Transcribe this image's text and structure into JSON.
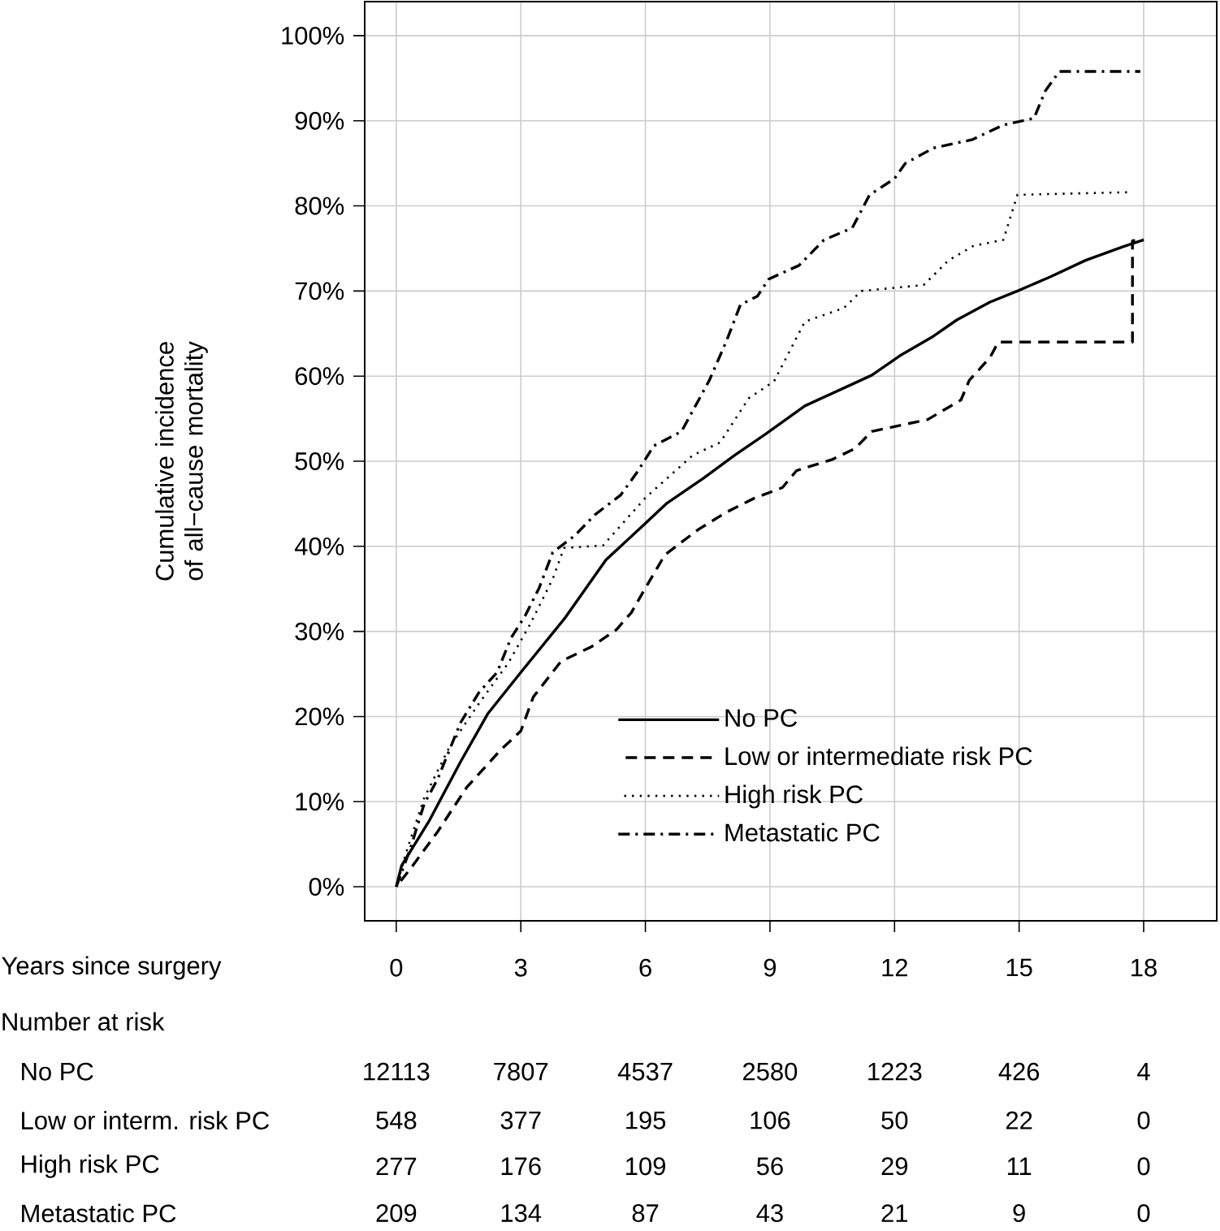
{
  "chart_data": {
    "type": "line",
    "xlabel": "Years since surgery",
    "ylabel": "Cumulative incidence of all−cause mortality",
    "xlim": [
      -0.76,
      19.76
    ],
    "ylim": [
      -4,
      104
    ],
    "xticks": [
      0,
      3,
      6,
      9,
      12,
      15,
      18
    ],
    "yticks": [
      {
        "value": 0,
        "label": "0%"
      },
      {
        "value": 10,
        "label": "10%"
      },
      {
        "value": 20,
        "label": "20%"
      },
      {
        "value": 30,
        "label": "30%"
      },
      {
        "value": 40,
        "label": "40%"
      },
      {
        "value": 50,
        "label": "50%"
      },
      {
        "value": 60,
        "label": "60%"
      },
      {
        "value": 70,
        "label": "70%"
      },
      {
        "value": 80,
        "label": "80%"
      },
      {
        "value": 90,
        "label": "90%"
      },
      {
        "value": 100,
        "label": "100%"
      }
    ],
    "grid": true,
    "legend": "bottom right",
    "series": [
      {
        "name": "No PC",
        "color": "#000000",
        "line_style": "solid",
        "x": [
          0,
          0.13,
          0.8,
          1.55,
          2.2,
          3,
          4.05,
          5.05,
          6,
          6.5,
          7.4,
          8.15,
          8.9,
          9.84,
          11.45,
          12.13,
          12.94,
          13.5,
          14.3,
          14.96,
          15.77,
          16.6,
          17.5,
          18
        ],
        "values": [
          0,
          2.5,
          7.8,
          14.7,
          20.3,
          25.2,
          31.5,
          38.4,
          42.7,
          45,
          48,
          50.7,
          53.2,
          56.5,
          60.1,
          62.4,
          64.7,
          66.6,
          68.7,
          70,
          71.7,
          73.6,
          75.2,
          76
        ]
      },
      {
        "name": "Low or intermediate risk PC",
        "color": "#000000",
        "line_style": "dashed",
        "x": [
          0,
          0.4,
          1.0,
          1.7,
          2.5,
          3,
          3.3,
          3.97,
          4.7,
          5.3,
          5.66,
          6,
          6.47,
          7.28,
          7.95,
          8.6,
          9.3,
          9.64,
          10.5,
          11.05,
          11.45,
          12.8,
          13.6,
          13.8,
          14.3,
          14.5,
          17.73,
          17.73,
          18
        ],
        "values": [
          0,
          2.5,
          6.5,
          11.7,
          16,
          18.3,
          22.3,
          26.5,
          28.2,
          30.2,
          32.2,
          35.1,
          39,
          42,
          44,
          45.6,
          46.9,
          48.9,
          50.2,
          51.5,
          53.5,
          54.9,
          57.2,
          59.5,
          62.2,
          64,
          64,
          75.9,
          76
        ]
      },
      {
        "name": "High risk PC",
        "color": "#000000",
        "line_style": "dotted",
        "x": [
          0,
          0.27,
          0.67,
          1.28,
          2.0,
          2.7,
          3.23,
          3.77,
          4.04,
          4.98,
          6,
          7.14,
          7.8,
          8.49,
          9.1,
          9.84,
          10.78,
          11.2,
          12.7,
          13.3,
          13.9,
          14.62,
          14.96,
          17.6
        ],
        "values": [
          0,
          4.5,
          10.4,
          16.4,
          21.6,
          26.3,
          30.9,
          36.2,
          39.8,
          40.1,
          45.7,
          50.7,
          52.2,
          57.4,
          59.4,
          66.4,
          68,
          70,
          70.7,
          73.6,
          75.3,
          76,
          81.3,
          81.6
        ]
      },
      {
        "name": "Metastatic PC",
        "color": "#000000",
        "line_style": "dashdot",
        "x": [
          0,
          0.34,
          0.67,
          1.0,
          1.55,
          2.0,
          2.43,
          2.76,
          3.1,
          3.44,
          3.77,
          4.31,
          4.78,
          5.4,
          5.8,
          6.06,
          6.2,
          6.87,
          7.54,
          7.95,
          8.29,
          8.7,
          8.97,
          9.7,
          10.3,
          10.98,
          11.4,
          12,
          12.26,
          12.94,
          13.88,
          14.62,
          15.36,
          15.63,
          15.97,
          17.92
        ],
        "values": [
          0,
          4.5,
          9.7,
          12.7,
          19.3,
          22.9,
          25.2,
          29.2,
          31.8,
          35.1,
          39.3,
          41.3,
          43.7,
          46,
          48.7,
          50.7,
          51.8,
          53.5,
          59.5,
          64.1,
          68.4,
          69.4,
          71.4,
          73,
          76,
          77.4,
          81.3,
          83.2,
          85,
          86.8,
          87.8,
          89.5,
          90.3,
          93.5,
          95.8,
          95.8
        ]
      }
    ],
    "annotations": [
      "Number at risk",
      "No PC",
      "12113",
      "7807",
      "4537",
      "2580",
      "1223",
      "426",
      "4",
      "Low or interm. risk PC",
      "548",
      "377",
      "195",
      "106",
      "50",
      "22",
      "0",
      "High risk PC",
      "277",
      "176",
      "109",
      "56",
      "29",
      "11",
      "0",
      "Metastatic PC",
      "209",
      "134",
      "87",
      "43",
      "21",
      "9",
      "0"
    ]
  }
}
